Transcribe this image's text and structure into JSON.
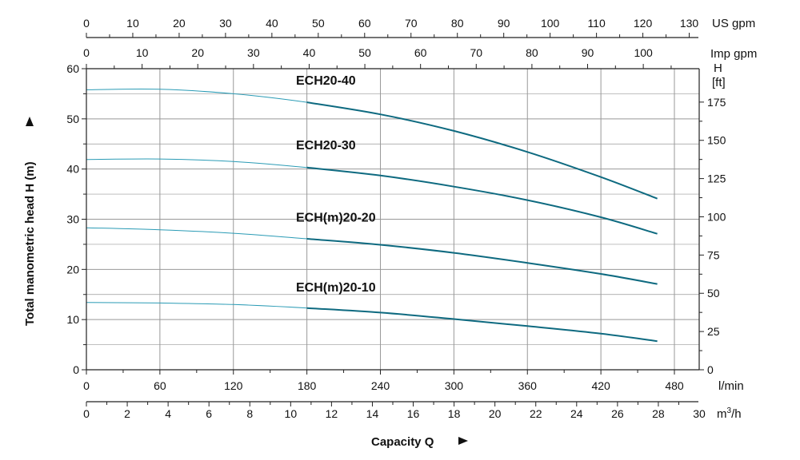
{
  "chart_data": {
    "type": "line",
    "title": "",
    "xlabel": "Capacity Q",
    "ylabel": "Total manometric head H (m)",
    "xlim_lmin": [
      0,
      500
    ],
    "ylim_m": [
      0,
      60
    ],
    "grid": true,
    "axes": {
      "left": {
        "ticks": [
          "0",
          "10",
          "20",
          "30",
          "40",
          "50",
          "60"
        ]
      },
      "right": {
        "unit": "H\n[ft]",
        "unit_line1": "H",
        "unit_line2": "[ft]",
        "ticks": [
          "0",
          "25",
          "50",
          "75",
          "100",
          "125",
          "150",
          "175"
        ]
      },
      "bottom_lmin": {
        "unit": "l/min",
        "ticks": [
          "0",
          "60",
          "120",
          "180",
          "240",
          "300",
          "360",
          "420",
          "480"
        ]
      },
      "bottom_m3h": {
        "unit": "m³/h",
        "unit_base": "m",
        "unit_sup": "3",
        "unit_tail": "/h",
        "ticks": [
          "0",
          "2",
          "4",
          "6",
          "8",
          "10",
          "12",
          "14",
          "16",
          "18",
          "20",
          "22",
          "24",
          "26",
          "28",
          "30"
        ]
      },
      "top_usgpm": {
        "unit": "US gpm",
        "ticks": [
          "0",
          "10",
          "20",
          "30",
          "40",
          "50",
          "60",
          "70",
          "80",
          "90",
          "100",
          "110",
          "120",
          "130"
        ]
      },
      "top_impgpm": {
        "unit": "Imp gpm",
        "ticks": [
          "0",
          "10",
          "20",
          "30",
          "40",
          "50",
          "60",
          "70",
          "80",
          "90",
          "100"
        ]
      }
    },
    "series": [
      {
        "name": "ECH20-40",
        "x": [
          0,
          60,
          120,
          180,
          240,
          300,
          360,
          420,
          466
        ],
        "y": [
          55.8,
          55.9,
          55.0,
          53.3,
          50.9,
          47.6,
          43.4,
          38.4,
          34.1
        ]
      },
      {
        "name": "ECH20-30",
        "x": [
          0,
          60,
          120,
          180,
          240,
          300,
          360,
          420,
          466
        ],
        "y": [
          41.9,
          42.0,
          41.5,
          40.3,
          38.7,
          36.5,
          33.8,
          30.4,
          27.1
        ]
      },
      {
        "name": "ECH(m)20-20",
        "x": [
          0,
          60,
          120,
          180,
          240,
          300,
          360,
          420,
          466
        ],
        "y": [
          28.3,
          27.9,
          27.2,
          26.1,
          24.9,
          23.3,
          21.3,
          19.1,
          17.1
        ]
      },
      {
        "name": "ECH(m)20-10",
        "x": [
          0,
          60,
          120,
          180,
          240,
          300,
          360,
          420,
          466
        ],
        "y": [
          13.4,
          13.3,
          13.0,
          12.3,
          11.4,
          10.1,
          8.7,
          7.2,
          5.7
        ]
      }
    ],
    "colors": {
      "curve_thick": "#0e6a80",
      "curve_thin": "#2a9bb5",
      "grid": "#999999",
      "axis": "#222222"
    }
  }
}
